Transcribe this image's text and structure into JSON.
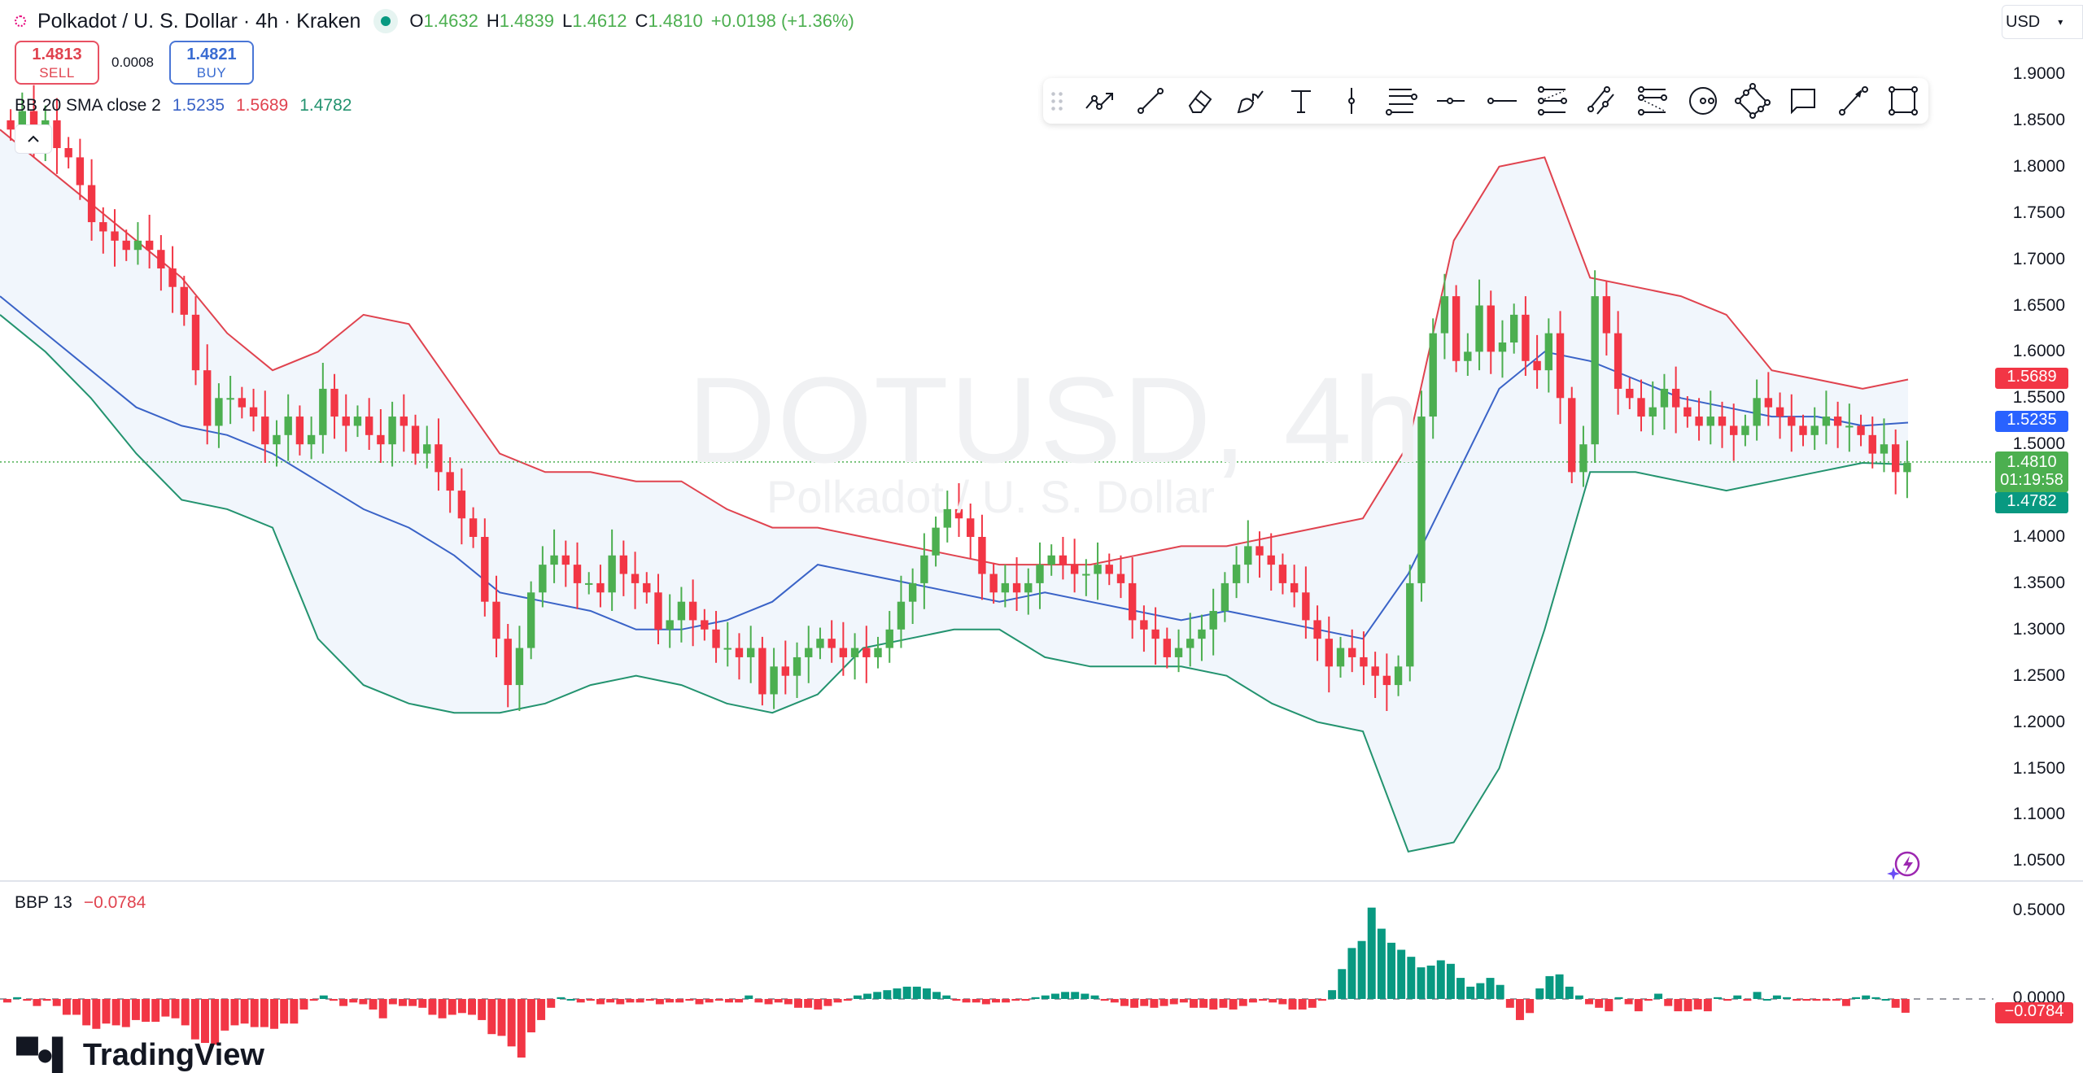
{
  "header": {
    "symbol_title": "Polkadot / U. S. Dollar · 4h · Kraken",
    "ohlc": {
      "open_label": "O",
      "open": "1.4632",
      "high_label": "H",
      "high": "1.4839",
      "low_label": "L",
      "low": "1.4612",
      "close_label": "C",
      "close": "1.4810",
      "change": "+0.0198 (+1.36%)"
    }
  },
  "trade": {
    "sell_price": "1.4813",
    "sell_label": "SELL",
    "spread": "0.0008",
    "buy_price": "1.4821",
    "buy_label": "BUY"
  },
  "indicators": {
    "bb": {
      "label": "BB 20 SMA close 2",
      "basis": "1.5235",
      "upper": "1.5689",
      "lower": "1.4782"
    },
    "bbp": {
      "label": "BBP 13",
      "value": "−0.0784"
    }
  },
  "currency_select": {
    "value": "USD"
  },
  "watermark": {
    "ticker": "DOTUSD, 4h",
    "name": "Polkadot / U. S. Dollar"
  },
  "price_tags": {
    "upper": "1.5689",
    "basis": "1.5235",
    "last_price": "1.4810",
    "countdown": "01:19:58",
    "lower": "1.4782",
    "bbp": "−0.0784"
  },
  "branding": {
    "logo_text": "TradingView"
  },
  "toolbar": {
    "tools": [
      "trend-line-path",
      "trend-line",
      "eraser",
      "brush",
      "text",
      "vertical-line",
      "pitchfork",
      "horizontal-ray",
      "horizontal-line",
      "fib-retracement",
      "parallel-channel",
      "fib-extension",
      "circle",
      "pattern",
      "callout",
      "arrow",
      "rectangle"
    ]
  },
  "colors": {
    "up": "#4caf50",
    "down": "#f23645",
    "bb_upper": "#e0434f",
    "bb_basis": "#3a63c7",
    "bb_lower": "#23936f",
    "bb_fill": "#f1f6fc",
    "bbp_up": "#089981",
    "bbp_down": "#f23645"
  },
  "chart_data": [
    {
      "type": "candlestick",
      "title": "Polkadot / U. S. Dollar · 4h · Kraken",
      "ylabel": "USD",
      "y_ticks": [
        "1.9000",
        "1.8500",
        "1.8000",
        "1.7500",
        "1.7000",
        "1.6500",
        "1.6000",
        "1.5500",
        "1.5000",
        "1.4500",
        "1.4000",
        "1.3500",
        "1.3000",
        "1.2500",
        "1.2000",
        "1.1500",
        "1.1000",
        "1.0500"
      ],
      "ylim": [
        1.03,
        1.92
      ],
      "grid": false,
      "last_price": 1.481,
      "closes": [
        1.84,
        1.86,
        1.83,
        1.85,
        1.82,
        1.81,
        1.78,
        1.74,
        1.73,
        1.72,
        1.71,
        1.72,
        1.71,
        1.69,
        1.67,
        1.64,
        1.58,
        1.52,
        1.55,
        1.55,
        1.54,
        1.53,
        1.5,
        1.51,
        1.53,
        1.5,
        1.51,
        1.56,
        1.53,
        1.52,
        1.53,
        1.51,
        1.5,
        1.53,
        1.52,
        1.49,
        1.5,
        1.47,
        1.45,
        1.42,
        1.4,
        1.33,
        1.29,
        1.24,
        1.28,
        1.34,
        1.37,
        1.38,
        1.37,
        1.35,
        1.35,
        1.34,
        1.38,
        1.36,
        1.35,
        1.34,
        1.3,
        1.31,
        1.33,
        1.31,
        1.3,
        1.28,
        1.28,
        1.27,
        1.28,
        1.23,
        1.26,
        1.25,
        1.27,
        1.28,
        1.29,
        1.28,
        1.27,
        1.28,
        1.27,
        1.28,
        1.3,
        1.33,
        1.35,
        1.38,
        1.41,
        1.43,
        1.42,
        1.4,
        1.36,
        1.34,
        1.35,
        1.34,
        1.35,
        1.37,
        1.38,
        1.37,
        1.36,
        1.36,
        1.37,
        1.36,
        1.35,
        1.31,
        1.3,
        1.29,
        1.27,
        1.28,
        1.29,
        1.3,
        1.32,
        1.35,
        1.37,
        1.39,
        1.38,
        1.37,
        1.35,
        1.34,
        1.31,
        1.29,
        1.26,
        1.28,
        1.27,
        1.26,
        1.25,
        1.24,
        1.26,
        1.35,
        1.53,
        1.62,
        1.66,
        1.59,
        1.6,
        1.65,
        1.6,
        1.61,
        1.64,
        1.59,
        1.58,
        1.62,
        1.55,
        1.47,
        1.5,
        1.66,
        1.62,
        1.56,
        1.55,
        1.53,
        1.54,
        1.56,
        1.54,
        1.53,
        1.52,
        1.53,
        1.52,
        1.51,
        1.52,
        1.55,
        1.54,
        1.53,
        1.52,
        1.51,
        1.52,
        1.53,
        1.52,
        1.52,
        1.51,
        1.49,
        1.5,
        1.47,
        1.48
      ],
      "bb_upper": [
        1.84,
        1.8,
        1.76,
        1.72,
        1.68,
        1.62,
        1.58,
        1.6,
        1.64,
        1.63,
        1.56,
        1.49,
        1.47,
        1.47,
        1.46,
        1.46,
        1.43,
        1.41,
        1.41,
        1.4,
        1.39,
        1.38,
        1.37,
        1.37,
        1.37,
        1.38,
        1.39,
        1.39,
        1.4,
        1.41,
        1.42,
        1.5,
        1.72,
        1.8,
        1.81,
        1.68,
        1.67,
        1.66,
        1.64,
        1.58,
        1.57,
        1.56,
        1.57
      ],
      "bb_basis": [
        1.66,
        1.62,
        1.58,
        1.54,
        1.52,
        1.51,
        1.49,
        1.46,
        1.43,
        1.41,
        1.38,
        1.34,
        1.33,
        1.32,
        1.3,
        1.3,
        1.31,
        1.33,
        1.37,
        1.36,
        1.35,
        1.34,
        1.33,
        1.34,
        1.33,
        1.32,
        1.31,
        1.32,
        1.31,
        1.3,
        1.29,
        1.36,
        1.46,
        1.56,
        1.6,
        1.59,
        1.57,
        1.55,
        1.54,
        1.53,
        1.53,
        1.52,
        1.5235
      ],
      "bb_lower": [
        1.64,
        1.6,
        1.55,
        1.49,
        1.44,
        1.43,
        1.41,
        1.29,
        1.24,
        1.22,
        1.21,
        1.21,
        1.22,
        1.24,
        1.25,
        1.24,
        1.22,
        1.21,
        1.23,
        1.28,
        1.29,
        1.3,
        1.3,
        1.27,
        1.26,
        1.26,
        1.26,
        1.25,
        1.22,
        1.2,
        1.19,
        1.06,
        1.07,
        1.15,
        1.3,
        1.47,
        1.47,
        1.46,
        1.45,
        1.46,
        1.47,
        1.48,
        1.4782
      ]
    },
    {
      "type": "bar",
      "title": "BBP 13",
      "y_ticks": [
        "0.5000",
        "0.0000"
      ],
      "last_value": -0.0784,
      "values": [
        -0.02,
        0.01,
        -0.01,
        -0.04,
        -0.01,
        -0.04,
        -0.09,
        -0.09,
        -0.15,
        -0.17,
        -0.14,
        -0.15,
        -0.16,
        -0.12,
        -0.13,
        -0.13,
        -0.1,
        -0.11,
        -0.15,
        -0.23,
        -0.25,
        -0.26,
        -0.18,
        -0.15,
        -0.14,
        -0.16,
        -0.16,
        -0.17,
        -0.14,
        -0.14,
        -0.06,
        -0.01,
        0.02,
        -0.01,
        -0.04,
        -0.02,
        -0.03,
        -0.06,
        -0.11,
        -0.03,
        -0.04,
        -0.04,
        -0.05,
        -0.09,
        -0.11,
        -0.09,
        -0.08,
        -0.09,
        -0.12,
        -0.2,
        -0.21,
        -0.27,
        -0.35,
        -0.19,
        -0.12,
        -0.05,
        0.01,
        0.0,
        -0.02,
        -0.01,
        -0.03,
        -0.02,
        -0.03,
        -0.02,
        -0.02,
        -0.01,
        -0.03,
        -0.02,
        -0.02,
        -0.01,
        -0.03,
        -0.02,
        -0.01,
        -0.02,
        -0.02,
        0.02,
        -0.02,
        -0.03,
        -0.02,
        -0.03,
        -0.05,
        -0.05,
        -0.06,
        -0.04,
        -0.02,
        -0.01,
        0.02,
        0.03,
        0.04,
        0.05,
        0.06,
        0.07,
        0.07,
        0.06,
        0.04,
        0.02,
        -0.01,
        -0.02,
        -0.02,
        -0.03,
        -0.02,
        -0.02,
        -0.01,
        -0.01,
        0.01,
        0.02,
        0.03,
        0.04,
        0.04,
        0.03,
        0.02,
        -0.01,
        -0.02,
        -0.04,
        -0.05,
        -0.04,
        -0.05,
        -0.04,
        -0.03,
        -0.02,
        -0.05,
        -0.05,
        -0.06,
        -0.05,
        -0.06,
        -0.04,
        -0.02,
        -0.01,
        -0.02,
        -0.03,
        -0.06,
        -0.06,
        -0.05,
        -0.01,
        0.05,
        0.17,
        0.29,
        0.33,
        0.52,
        0.4,
        0.32,
        0.28,
        0.24,
        0.18,
        0.19,
        0.22,
        0.2,
        0.12,
        0.07,
        0.09,
        0.12,
        0.08,
        -0.05,
        -0.12,
        -0.08,
        0.06,
        0.13,
        0.14,
        0.07,
        0.02,
        -0.03,
        -0.05,
        -0.07,
        0.01,
        -0.03,
        -0.07,
        -0.01,
        0.03,
        -0.04,
        -0.07,
        -0.07,
        -0.06,
        -0.07,
        0.01,
        -0.01,
        0.02,
        -0.01,
        0.04,
        0.0,
        0.02,
        0.01,
        -0.01,
        -0.01,
        -0.01,
        -0.01,
        -0.01,
        -0.04,
        0.01,
        0.02,
        0.01,
        0.0,
        -0.05,
        -0.0784
      ]
    }
  ]
}
